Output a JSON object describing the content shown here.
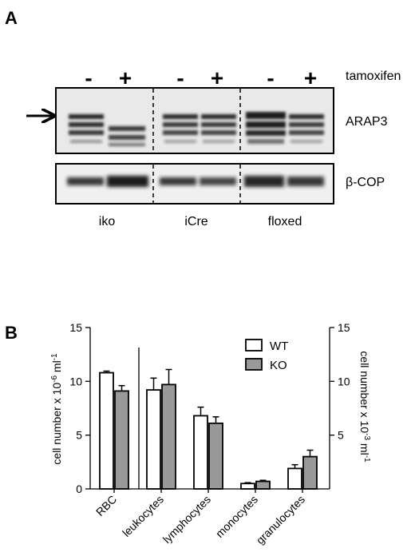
{
  "panel_a": {
    "label": "A",
    "treatment_label": "tamoxifen",
    "signs": [
      "-",
      "+",
      "-",
      "+",
      "-",
      "+"
    ],
    "blots": {
      "top": "ARAP3",
      "bottom": "β-COP"
    },
    "groups": [
      "iko",
      "iCre",
      "floxed"
    ]
  },
  "panel_b": {
    "label": "B"
  },
  "chart_data": {
    "type": "bar",
    "categories": [
      "RBC",
      "leukocytes",
      "lymphocytes",
      "monocytes",
      "granulocytes"
    ],
    "series": [
      {
        "name": "WT",
        "values": [
          10.8,
          9.2,
          6.8,
          0.5,
          1.9
        ],
        "errors": [
          0.15,
          1.1,
          0.8,
          0.08,
          0.35
        ],
        "color": "#ffffff"
      },
      {
        "name": "KO",
        "values": [
          9.1,
          9.7,
          6.1,
          0.7,
          3.0
        ],
        "errors": [
          0.5,
          1.4,
          0.6,
          0.1,
          0.6
        ],
        "color": "#999999"
      }
    ],
    "ylabel_left": "cell number x 10-6 ml-1",
    "ylabel_right": "cell number x 10-3 ml-1",
    "ylim": [
      0,
      15
    ],
    "yticks": [
      0,
      5,
      10,
      15
    ],
    "right_yticks": [
      5,
      10,
      15
    ],
    "legend_position": "top-right",
    "grid": false
  }
}
